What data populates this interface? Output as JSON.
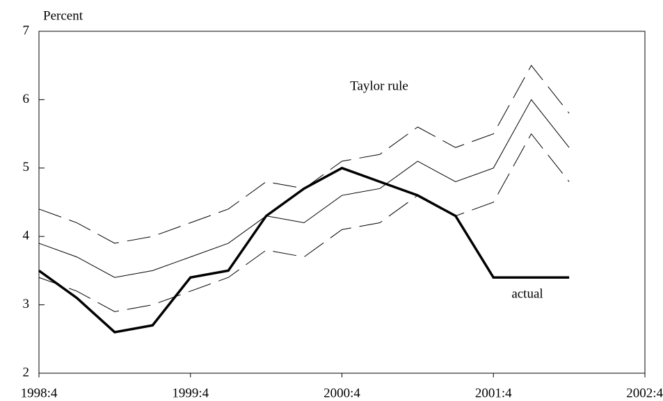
{
  "chart_data": {
    "type": "line",
    "ylabel": "Percent",
    "categories": [
      "1998:4",
      null,
      null,
      null,
      "1999:4",
      null,
      null,
      null,
      "2000:4",
      null,
      null,
      null,
      "2001:4",
      null,
      null,
      null,
      "2002:4"
    ],
    "series": [
      {
        "name": "actual",
        "color": "#000000",
        "width": 3.5,
        "style": "solid",
        "values": [
          3.5,
          3.1,
          2.6,
          2.7,
          3.4,
          3.5,
          4.3,
          4.7,
          5.0,
          4.8,
          4.6,
          4.3,
          3.4,
          3.4,
          3.4,
          null,
          null
        ]
      },
      {
        "name": "Taylor rule",
        "color": "#000000",
        "width": 1,
        "style": "solid",
        "values": [
          3.9,
          3.7,
          3.4,
          3.5,
          3.7,
          3.9,
          4.3,
          4.2,
          4.6,
          4.7,
          5.1,
          4.8,
          5.0,
          6.0,
          5.3,
          null,
          null
        ]
      },
      {
        "color": "#000000",
        "width": 1,
        "style": "dashed",
        "values": [
          4.4,
          4.2,
          3.9,
          4.0,
          4.2,
          4.4,
          4.8,
          4.7,
          5.1,
          5.2,
          5.6,
          5.3,
          5.5,
          6.5,
          5.8,
          null,
          null
        ]
      },
      {
        "color": "#000000",
        "width": 1,
        "style": "dashed",
        "values": [
          3.4,
          3.2,
          2.9,
          3.0,
          3.2,
          3.4,
          3.8,
          3.7,
          4.1,
          4.2,
          4.6,
          4.3,
          4.5,
          5.5,
          4.8,
          null,
          null
        ]
      }
    ],
    "ylim": [
      2,
      7
    ],
    "yticks": [
      2,
      3,
      4,
      5,
      6,
      7
    ],
    "grid": false
  }
}
